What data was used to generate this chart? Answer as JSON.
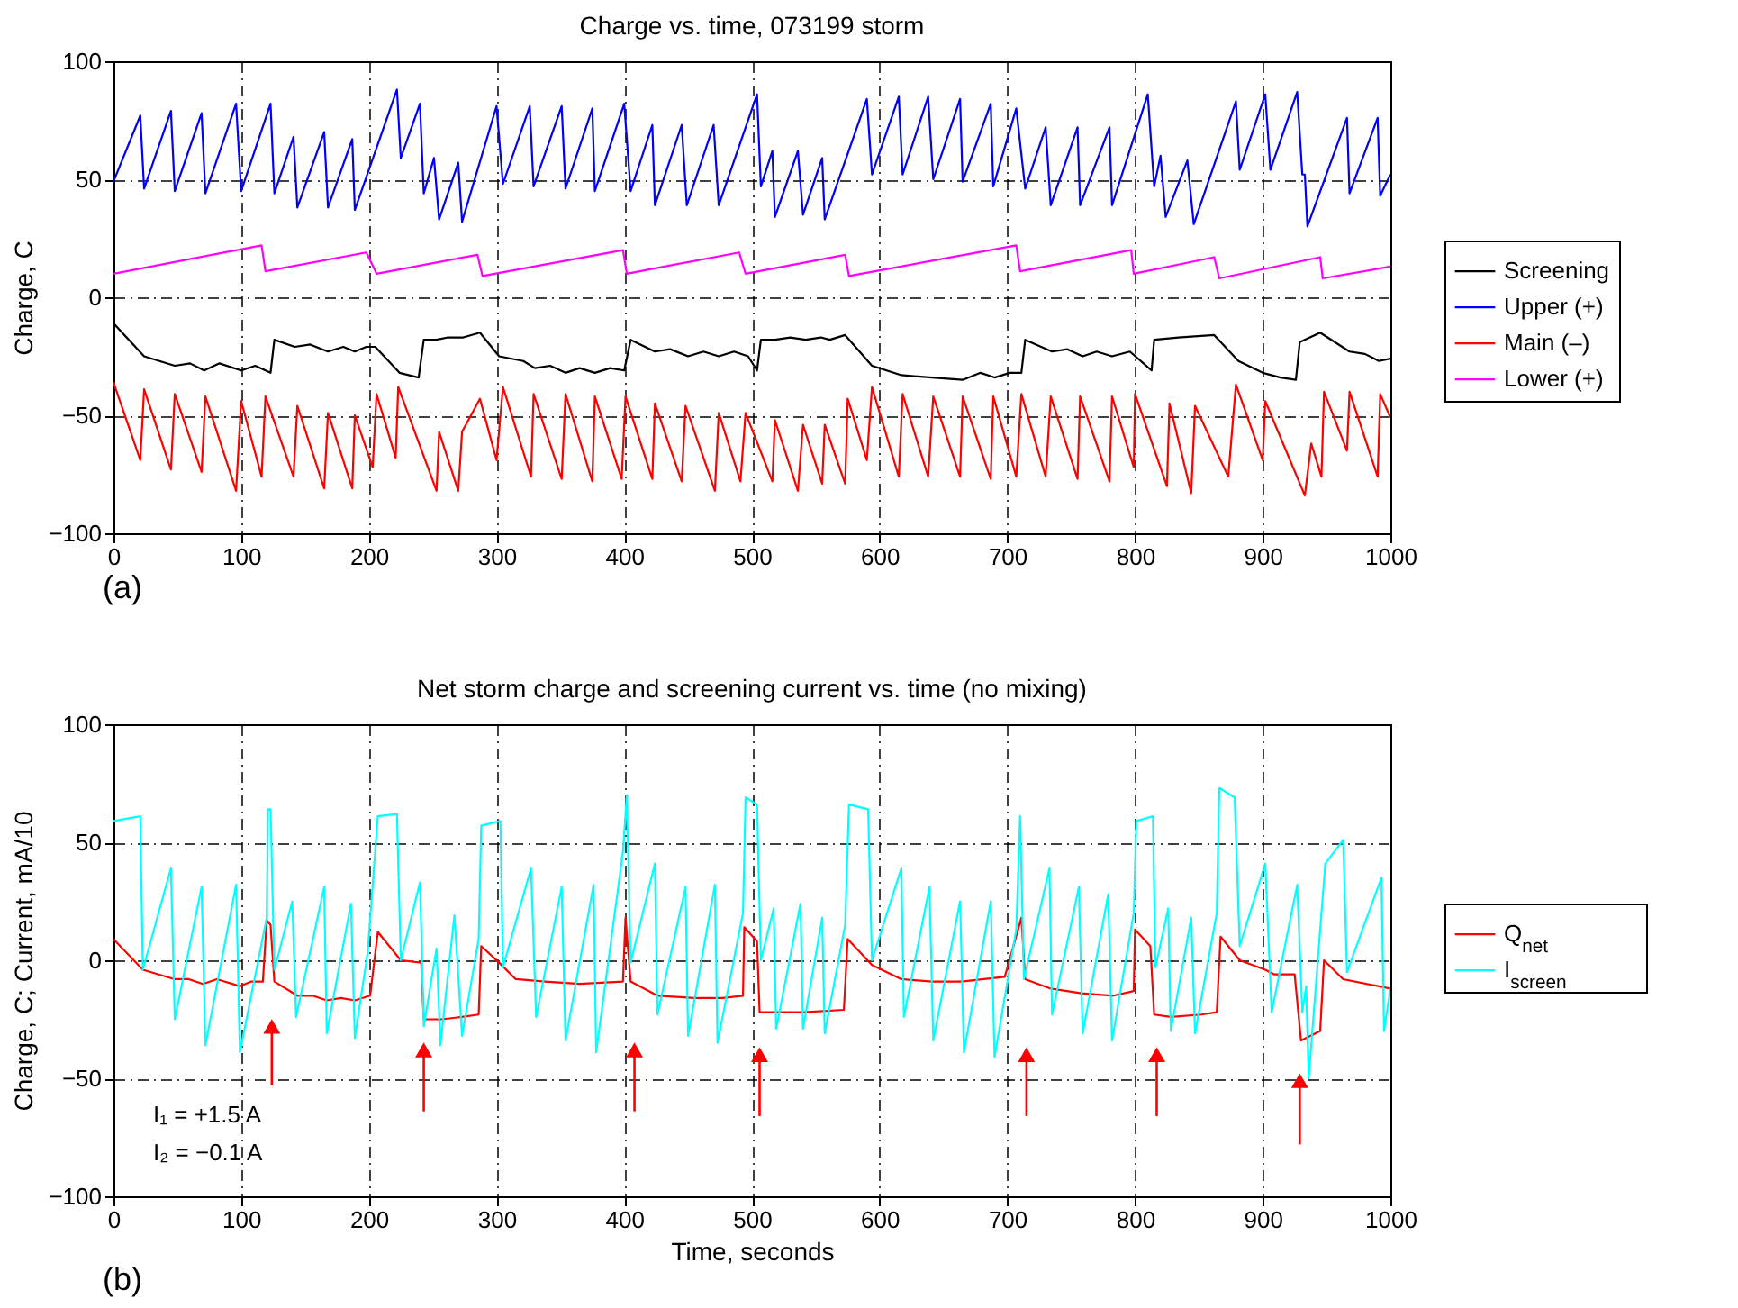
{
  "chart_data": [
    {
      "type": "line",
      "title": "Charge vs. time, 073199 storm",
      "ylabel": "Charge, C",
      "xlim": [
        0,
        1000
      ],
      "ylim": [
        -100,
        100
      ],
      "xticks": [
        0,
        100,
        200,
        300,
        400,
        500,
        600,
        700,
        800,
        900,
        1000
      ],
      "yticks": [
        -100,
        -50,
        0,
        50,
        100
      ],
      "grid": true,
      "legend": "right",
      "annotations": [
        "(a)"
      ],
      "series": [
        {
          "name": "Screening",
          "color": "#000000",
          "x": [
            0,
            24,
            48,
            60,
            71,
            83,
            100,
            111,
            123,
            126,
            142,
            154,
            168,
            180,
            189,
            198,
            205,
            224,
            239,
            243,
            253,
            262,
            274,
            287,
            302,
            321,
            330,
            342,
            354,
            365,
            377,
            389,
            400,
            405,
            424,
            436,
            450,
            462,
            474,
            486,
            497,
            504,
            507,
            518,
            530,
            542,
            554,
            561,
            573,
            594,
            617,
            641,
            665,
            679,
            690,
            702,
            711,
            714,
            735,
            747,
            759,
            770,
            782,
            796,
            813,
            815,
            834,
            862,
            881,
            900,
            914,
            926,
            929,
            945,
            968,
            980,
            991,
            1000
          ],
          "values": [
            -11,
            -25,
            -29,
            -28,
            -31,
            -28,
            -31,
            -29,
            -32,
            -18,
            -21,
            -20,
            -23,
            -21,
            -23,
            -21,
            -21,
            -32,
            -34,
            -18,
            -18,
            -17,
            -17,
            -15,
            -25,
            -27,
            -30,
            -29,
            -32,
            -30,
            -32,
            -30,
            -31,
            -18,
            -23,
            -22,
            -25,
            -23,
            -25,
            -23,
            -25,
            -31,
            -18,
            -18,
            -17,
            -18,
            -17,
            -18,
            -16,
            -29,
            -33,
            -34,
            -35,
            -32,
            -34,
            -32,
            -32,
            -18,
            -23,
            -22,
            -25,
            -23,
            -25,
            -23,
            -31,
            -18,
            -17,
            -16,
            -27,
            -32,
            -34,
            -35,
            -19,
            -15,
            -23,
            -24,
            -27,
            -26
          ]
        },
        {
          "name": "Upper (+)",
          "color": "#0000ff",
          "x": [
            0,
            21,
            24,
            45,
            48,
            69,
            72,
            96,
            100,
            123,
            126,
            141,
            144,
            165,
            168,
            187,
            189,
            222,
            225,
            240,
            243,
            251,
            255,
            270,
            273,
            300,
            305,
            326,
            329,
            351,
            354,
            375,
            377,
            400,
            405,
            422,
            424,
            445,
            449,
            470,
            474,
            504,
            507,
            516,
            518,
            536,
            540,
            555,
            557,
            590,
            594,
            615,
            618,
            638,
            642,
            663,
            665,
            687,
            689,
            707,
            714,
            730,
            734,
            755,
            757,
            780,
            782,
            810,
            815,
            820,
            824,
            841,
            846,
            879,
            882,
            902,
            906,
            927,
            931,
            933,
            935,
            966,
            968,
            990,
            992,
            1000
          ],
          "values": [
            49,
            77,
            46,
            79,
            45,
            78,
            44,
            82,
            45,
            82,
            44,
            68,
            38,
            70,
            38,
            67,
            37,
            88,
            59,
            82,
            44,
            59,
            33,
            57,
            32,
            81,
            48,
            81,
            47,
            81,
            46,
            80,
            45,
            82,
            45,
            73,
            39,
            73,
            39,
            73,
            39,
            86,
            47,
            62,
            34,
            62,
            35,
            59,
            33,
            84,
            52,
            85,
            52,
            85,
            50,
            84,
            49,
            82,
            47,
            80,
            46,
            72,
            39,
            72,
            39,
            72,
            39,
            86,
            47,
            60,
            34,
            58,
            31,
            83,
            54,
            86,
            54,
            87,
            52,
            52,
            30,
            76,
            44,
            76,
            43,
            52
          ]
        },
        {
          "name": "Main (–)",
          "color": "#ff0000",
          "x": [
            0,
            21,
            24,
            45,
            48,
            69,
            72,
            96,
            100,
            116,
            119,
            141,
            144,
            165,
            168,
            187,
            189,
            203,
            206,
            221,
            223,
            253,
            255,
            270,
            273,
            287,
            300,
            305,
            327,
            329,
            351,
            354,
            375,
            377,
            398,
            401,
            422,
            424,
            445,
            448,
            471,
            474,
            491,
            495,
            516,
            518,
            536,
            540,
            555,
            557,
            573,
            575,
            590,
            594,
            615,
            618,
            638,
            642,
            663,
            665,
            687,
            689,
            707,
            711,
            730,
            734,
            755,
            757,
            780,
            782,
            799,
            800,
            825,
            827,
            844,
            847,
            873,
            879,
            900,
            902,
            933,
            938,
            946,
            948,
            966,
            968,
            990,
            992,
            1000
          ],
          "values": [
            -36,
            -69,
            -39,
            -73,
            -41,
            -74,
            -42,
            -82,
            -44,
            -76,
            -42,
            -76,
            -46,
            -81,
            -49,
            -81,
            -50,
            -72,
            -41,
            -68,
            -38,
            -82,
            -57,
            -82,
            -57,
            -43,
            -69,
            -38,
            -76,
            -41,
            -77,
            -41,
            -78,
            -42,
            -77,
            -42,
            -77,
            -45,
            -78,
            -46,
            -82,
            -49,
            -78,
            -49,
            -78,
            -52,
            -82,
            -54,
            -79,
            -54,
            -79,
            -43,
            -69,
            -38,
            -76,
            -41,
            -76,
            -42,
            -76,
            -42,
            -77,
            -42,
            -76,
            -41,
            -76,
            -42,
            -77,
            -42,
            -78,
            -42,
            -72,
            -41,
            -80,
            -45,
            -83,
            -46,
            -76,
            -37,
            -69,
            -44,
            -84,
            -62,
            -76,
            -40,
            -65,
            -40,
            -76,
            -41,
            -51
          ]
        },
        {
          "name": "Lower (+)",
          "color": "#ff00ff",
          "x": [
            0,
            116,
            119,
            198,
            206,
            285,
            289,
            399,
            402,
            490,
            495,
            573,
            576,
            707,
            710,
            797,
            799,
            862,
            866,
            945,
            947,
            1000
          ],
          "values": [
            10,
            22,
            11,
            19,
            10,
            18,
            9,
            20,
            10,
            19,
            10,
            18,
            9,
            22,
            11,
            20,
            10,
            17,
            8,
            17,
            8,
            13
          ]
        }
      ]
    },
    {
      "type": "line",
      "title": "Net storm charge and screening current vs. time (no mixing)",
      "xlabel": "Time, seconds",
      "ylabel": "Charge, C; Current, mA/10",
      "xlim": [
        0,
        1000
      ],
      "ylim": [
        -100,
        100
      ],
      "xticks": [
        0,
        100,
        200,
        300,
        400,
        500,
        600,
        700,
        800,
        900,
        1000
      ],
      "yticks": [
        -100,
        -50,
        0,
        50,
        100
      ],
      "grid": true,
      "legend": "right",
      "annotations": [
        "(b)",
        "I₁ = +1.5 A",
        "I₂ = −0.1 A"
      ],
      "series": [
        {
          "name": "Q$_{net}$",
          "color": "#ff0000",
          "x": [
            0,
            23,
            48,
            59,
            70,
            81,
            99,
            108,
            117,
            120,
            123,
            126,
            144,
            156,
            167,
            178,
            189,
            201,
            207,
            225,
            241,
            243,
            257,
            273,
            286,
            288,
            302,
            315,
            338,
            365,
            399,
            401,
            405,
            426,
            455,
            477,
            493,
            494,
            504,
            506,
            520,
            540,
            572,
            575,
            594,
            617,
            641,
            664,
            698,
            711,
            714,
            734,
            758,
            783,
            799,
            800,
            812,
            815,
            828,
            852,
            864,
            867,
            882,
            902,
            909,
            925,
            930,
            945,
            948,
            963,
            1000
          ],
          "values": [
            9,
            -4,
            -8,
            -8,
            -10,
            -8,
            -11,
            -9,
            -9,
            17,
            15,
            -9,
            -15,
            -15,
            -17,
            -16,
            -17,
            -15,
            12,
            0,
            -1,
            -25,
            -25,
            -24,
            -23,
            6,
            -1,
            -8,
            -9,
            -10,
            -9,
            18,
            -9,
            -15,
            -16,
            -16,
            -15,
            14,
            8,
            -22,
            -22,
            -22,
            -21,
            9,
            -2,
            -8,
            -9,
            -9,
            -7,
            18,
            -8,
            -12,
            -14,
            -15,
            -13,
            13,
            6,
            -23,
            -24,
            -23,
            -22,
            10,
            0,
            -4,
            -6,
            -6,
            -34,
            -30,
            0,
            -8,
            -12
          ]
        },
        {
          "type": "scatter",
          "color": "#ff0000",
          "marker": "triangle",
          "x": [
            124,
            243,
            408,
            506,
            715,
            817,
            929
          ],
          "values": [
            -28,
            -38,
            -38,
            -40,
            -40,
            -40,
            -51
          ],
          "errors": [
            [
              -53,
              -28
            ],
            [
              -64,
              -38
            ],
            [
              -64,
              -38
            ],
            [
              -66,
              -40
            ],
            [
              -66,
              -40
            ],
            [
              -66,
              -40
            ],
            [
              -78,
              -51
            ]
          ]
        },
        {
          "name": "I$_{screen}$",
          "color": "#00ffff",
          "x": [
            0,
            21,
            23,
            45,
            48,
            69,
            72,
            96,
            99,
            120,
            121,
            123,
            126,
            140,
            143,
            165,
            167,
            186,
            189,
            199,
            207,
            222,
            225,
            240,
            243,
            253,
            256,
            267,
            273,
            286,
            288,
            303,
            305,
            327,
            331,
            351,
            354,
            376,
            378,
            399,
            402,
            405,
            424,
            426,
            448,
            450,
            471,
            473,
            493,
            495,
            504,
            507,
            517,
            519,
            538,
            540,
            555,
            557,
            573,
            576,
            591,
            594,
            617,
            619,
            639,
            642,
            663,
            666,
            687,
            690,
            707,
            710,
            713,
            733,
            735,
            756,
            759,
            779,
            782,
            799,
            801,
            814,
            816,
            826,
            828,
            844,
            847,
            864,
            866,
            878,
            882,
            902,
            907,
            927,
            931,
            934,
            936,
            949,
            963,
            966,
            993,
            995,
            1000
          ],
          "values": [
            59,
            61,
            -4,
            39,
            -25,
            31,
            -36,
            32,
            -39,
            18,
            64,
            64,
            -4,
            25,
            -24,
            31,
            -31,
            24,
            -33,
            3,
            61,
            62,
            0,
            33,
            -28,
            5,
            -36,
            19,
            -32,
            9,
            57,
            59,
            -3,
            39,
            -24,
            31,
            -34,
            32,
            -39,
            46,
            70,
            -1,
            41,
            -23,
            31,
            -32,
            32,
            -35,
            20,
            69,
            66,
            0,
            22,
            -29,
            24,
            -29,
            18,
            -31,
            15,
            66,
            64,
            0,
            39,
            -24,
            31,
            -34,
            25,
            -39,
            25,
            -41,
            13,
            61,
            -8,
            39,
            -23,
            31,
            -31,
            28,
            -34,
            20,
            59,
            61,
            -3,
            22,
            -30,
            18,
            -31,
            20,
            73,
            69,
            6,
            41,
            -22,
            32,
            -22,
            -11,
            -50,
            41,
            51,
            -5,
            35,
            -30,
            -12
          ]
        }
      ]
    }
  ]
}
